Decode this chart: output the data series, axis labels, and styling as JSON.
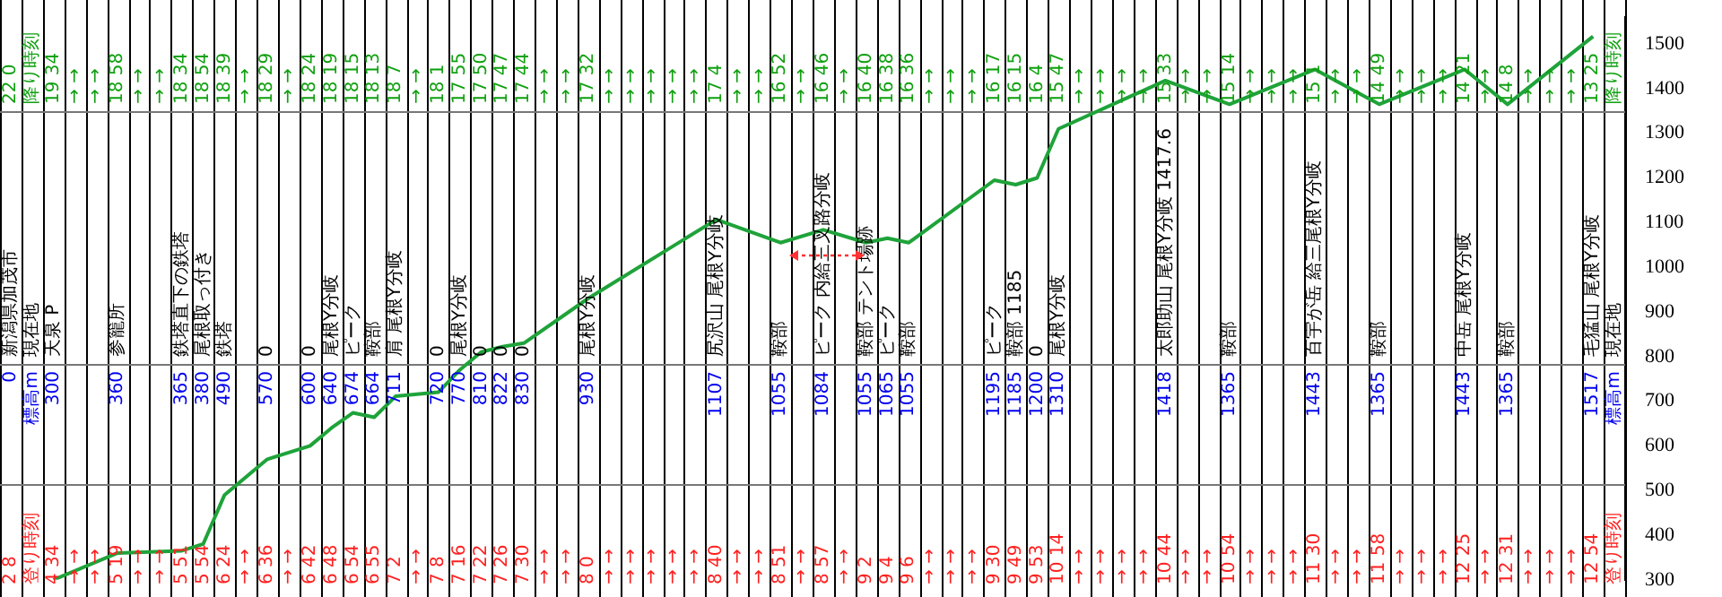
{
  "chart_data": {
    "type": "line",
    "categories": [
      "新潟県加茂市",
      "現在地",
      "天泉 P",
      null,
      null,
      "参籠所",
      null,
      null,
      "鉄塔直下の鉄塔",
      "尾根取っ付き",
      "鉄塔",
      null,
      "0",
      null,
      "0",
      "尾根Y分岐",
      "ピーク",
      "鞍部",
      "肩 尾根Y分岐",
      null,
      "0",
      "尾根Y分岐",
      "0",
      "0",
      "0",
      null,
      null,
      "尾根Y分岐",
      null,
      null,
      null,
      null,
      null,
      "尻沢山 尾根Y分岐",
      null,
      null,
      "鞍部",
      null,
      "ピーク 内給三叉路分岐",
      null,
      "鞍部 テント場跡",
      "ピーク",
      "鞍部",
      null,
      null,
      null,
      "ピーク",
      "鞍部 1185",
      "0",
      "尾根Y分岐",
      null,
      null,
      null,
      null,
      "太郎助山 尾根Y分岐 1417.6",
      null,
      null,
      "鞍部",
      null,
      null,
      null,
      "百宇が岳 給三尾根Y分岐",
      null,
      null,
      "鞍部",
      null,
      null,
      null,
      "中岳 尾根Y分岐",
      null,
      "鞍部",
      null,
      null,
      null,
      "毛猛山 尾根Y分岐",
      "現在地"
    ],
    "series": [
      {
        "color": "#1fa33a",
        "values": [
          null,
          null,
          300,
          null,
          null,
          360,
          null,
          null,
          365,
          380,
          490,
          null,
          570,
          null,
          600,
          640,
          674,
          664,
          711,
          null,
          720,
          770,
          810,
          822,
          830,
          null,
          null,
          930,
          null,
          null,
          null,
          null,
          null,
          1107,
          null,
          null,
          1055,
          null,
          1084,
          null,
          1055,
          1065,
          1055,
          null,
          null,
          null,
          1195,
          1185,
          1200,
          1310,
          null,
          null,
          null,
          null,
          1418,
          null,
          null,
          1365,
          null,
          null,
          null,
          1443,
          null,
          null,
          1365,
          null,
          null,
          null,
          1443,
          null,
          1365,
          null,
          null,
          null,
          1517,
          null
        ],
        "name": null
      }
    ],
    "annotations": [
      "2 8",
      "22 0",
      "登り時刻",
      "降り時刻",
      "4 34",
      "19 34",
      "→ →",
      "→ →",
      "→ →",
      "→ →",
      "5 19",
      "18 58",
      "→ →",
      "→ →",
      "→ →",
      "→ →",
      "5 51",
      "18 34",
      "5 54",
      "18 54",
      "6 24",
      "18 39",
      "→ →",
      "→ →",
      "6 36",
      "18 29",
      "→ →",
      "→ →",
      "6 42",
      "18 24",
      "6 48",
      "18 19",
      "6 54",
      "18 15",
      "6 55",
      "18 13",
      "7 2",
      "18 7",
      "→ →",
      "→ →",
      "7 8",
      "18 1",
      "7 16",
      "17 55",
      "7 22",
      "17 50",
      "7 26",
      "17 47",
      "7 30",
      "17 44",
      "→ →",
      "→ →",
      "→ →",
      "→ →",
      "8 0",
      "17 32",
      "→ →",
      "→ →",
      "→ →",
      "→ →",
      "→ →",
      "→ →",
      "→ →",
      "→ →",
      "→ →",
      "→ →",
      "8 40",
      "17 4",
      "→ →",
      "→ →",
      "→ →",
      "→ →",
      "8 51",
      "16 52",
      "→ →",
      "→ →",
      "8 57",
      "16 46",
      "→ →",
      "→ →",
      "9 2",
      "16 40",
      "9 4",
      "16 38",
      "9 6",
      "16 36",
      "→ →",
      "→ →",
      "→ →",
      "→ →",
      "→ →",
      "→ →",
      "9 30",
      "16 17",
      "9 49",
      "16 15",
      "9 53",
      "16 4",
      "10 14",
      "15 47",
      "→ →",
      "→ →",
      "→ →",
      "→ →",
      "→ →",
      "→ →",
      "→ →",
      "→ →",
      "10 44",
      "15 33",
      "→ →",
      "→ →",
      "→ →",
      "→ →",
      "10 54",
      "15 14",
      "→ →",
      "→ →",
      "→ →",
      "→ →",
      "→ →",
      "→ →",
      "11 30",
      "15 1",
      "→ →",
      "→ →",
      "→ →",
      "→ →",
      "11 58",
      "14 49",
      "→ →",
      "→ →",
      "→ →",
      "→ →",
      "→ →",
      "→ →",
      "12 25",
      "14 21",
      "→ →",
      "→ →",
      "12 31",
      "14 8",
      "→ →",
      "→ →",
      "→ →",
      "→ →",
      "→ →",
      "→ →",
      "12 54",
      "13 25",
      "登り時刻",
      "降り時刻",
      "0",
      "標高m",
      "300",
      "360",
      "365",
      "380",
      "490",
      "570",
      "600",
      "640",
      "674",
      "664",
      "711",
      "720",
      "770",
      "810",
      "822",
      "830",
      "930",
      "1107",
      "1055",
      "1084",
      "1055",
      "1065",
      "1055",
      "1195",
      "1185",
      "1200",
      "1310",
      "1418",
      "1365",
      "1443",
      "1365",
      "1443",
      "1365",
      "1517",
      "標高m"
    ],
    "ylim": [
      300,
      1560
    ],
    "yticks": [
      300,
      400,
      500,
      600,
      700,
      800,
      900,
      1000,
      1100,
      1200,
      1300,
      1400,
      1500
    ],
    "grid": "x",
    "marker": "none"
  }
}
